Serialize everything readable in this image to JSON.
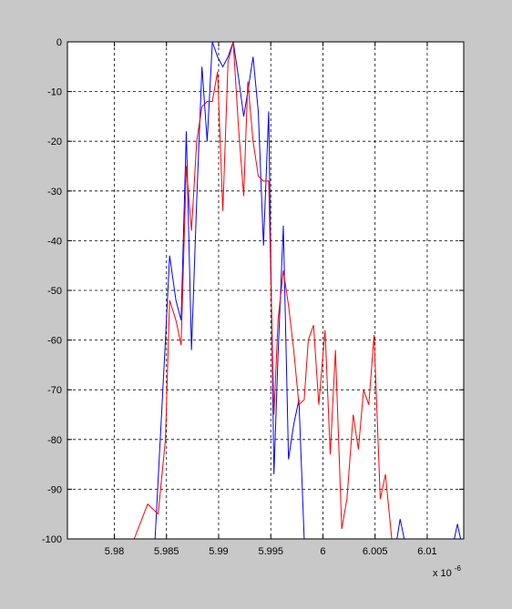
{
  "colors": {
    "figure_background": "#c8c8c8",
    "axes_background": "#ffffff",
    "axes_frame": "#000000",
    "grid": "#000000"
  },
  "chart_data": {
    "type": "line",
    "title": "",
    "xlabel": "",
    "ylabel": "",
    "x_exponent_label": {
      "base": "x 10",
      "exponent": "-6"
    },
    "xlim": [
      5.9755,
      6.0135
    ],
    "ylim": [
      -100,
      0
    ],
    "xticks": [
      5.98,
      5.985,
      5.99,
      5.995,
      6.0,
      6.005,
      6.01
    ],
    "xtick_labels": [
      "5.98",
      "5.985",
      "5.99",
      "5.995",
      "6",
      "6.005",
      "6.01"
    ],
    "yticks": [
      0,
      -10,
      -20,
      -30,
      -40,
      -50,
      -60,
      -70,
      -80,
      -90,
      -100
    ],
    "ytick_labels": [
      "0",
      "-10",
      "-20",
      "-30",
      "-40",
      "-50",
      "-60",
      "-70",
      "-80",
      "-90",
      "-100"
    ],
    "grid": true,
    "grid_style": "dashed",
    "legend": "none",
    "series": [
      {
        "color": "#0000ff",
        "x": [
          5.9839,
          5.9849,
          5.9853,
          5.9859,
          5.9864,
          5.9869,
          5.9874,
          5.9879,
          5.9884,
          5.9889,
          5.9894,
          5.9899,
          5.9904,
          5.9909,
          5.9914,
          5.9919,
          5.9924,
          5.9928,
          5.9933,
          5.9938,
          5.9943,
          5.9948,
          5.9953,
          5.9957,
          5.9962,
          5.9967,
          5.9972,
          5.9977,
          5.9982,
          5.9986
        ],
        "y": [
          -100,
          -60,
          -43,
          -52,
          -56,
          -18,
          -62,
          -32,
          -5,
          -20,
          0,
          -3,
          -5,
          -3,
          0,
          -7,
          -15,
          -10,
          -3,
          -14,
          -41,
          -14,
          -87,
          -63,
          -37,
          -84,
          -77,
          -72,
          -100,
          -100
        ]
      },
      {
        "color": "#0000ff",
        "x": [
          6.0071,
          6.0074,
          6.0078
        ],
        "y": [
          -100,
          -96,
          -100
        ]
      },
      {
        "color": "#0000ff",
        "x": [
          6.0126,
          6.0129,
          6.0132
        ],
        "y": [
          -100,
          -97,
          -100
        ]
      },
      {
        "color": "#ff0000",
        "x": [
          5.9819,
          5.9832,
          5.9842,
          5.9849,
          5.9853,
          5.9859,
          5.9864,
          5.9869,
          5.9874,
          5.9879,
          5.9884,
          5.9889,
          5.9894,
          5.9899,
          5.9904,
          5.9909,
          5.9914,
          5.9919,
          5.9924,
          5.9928,
          5.9933,
          5.9938,
          5.9943,
          5.9948,
          5.9953,
          5.9957,
          5.9962,
          5.9967,
          5.9972,
          5.9977,
          5.9982,
          5.9986,
          5.9991,
          5.9996,
          6.0002,
          6.0007,
          6.0012,
          6.0018,
          6.0023,
          6.0029,
          6.0034,
          6.0039,
          6.0044,
          6.0049,
          6.0055,
          6.006,
          6.0066,
          6.0071,
          6.0076,
          6.0081,
          6.0086,
          6.0092,
          6.0097,
          6.0102,
          6.0107,
          6.0112,
          6.0118
        ],
        "y": [
          -100,
          -93,
          -95,
          -80,
          -52,
          -56,
          -61,
          -25,
          -38,
          -20,
          -13,
          -12,
          -12,
          -6,
          -34,
          -4,
          0,
          -17,
          -31,
          -8,
          -20,
          -27,
          -28,
          -28,
          -75,
          -56,
          -46,
          -53,
          -62,
          -73,
          -72,
          -60,
          -57,
          -73,
          -58,
          -83,
          -62,
          -98,
          -92,
          -75,
          -82,
          -70,
          -73,
          -59,
          -92,
          -87,
          -100,
          -100,
          -100,
          -100,
          -100,
          -100,
          -100,
          -100,
          -100,
          -100,
          -100
        ]
      }
    ]
  }
}
